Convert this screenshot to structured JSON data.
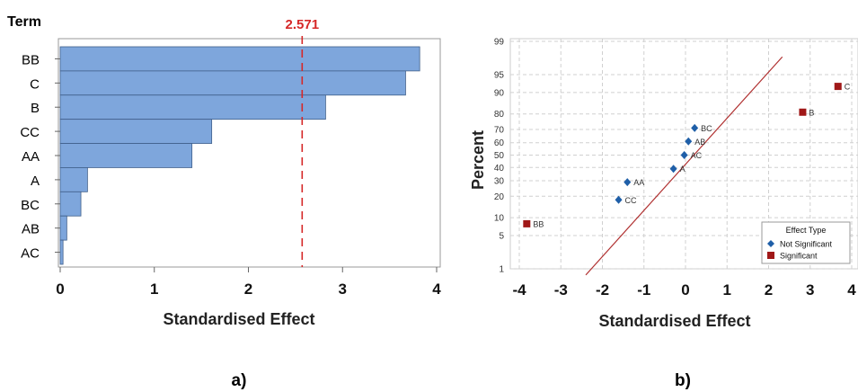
{
  "chart_data": [
    {
      "type": "bar",
      "orientation": "horizontal",
      "panel_label": "a)",
      "ylabel": "Term",
      "xlabel": "Standardised Effect",
      "categories": [
        "BB",
        "C",
        "B",
        "CC",
        "AA",
        "A",
        "BC",
        "AB",
        "AC"
      ],
      "values": [
        3.82,
        3.67,
        2.82,
        1.61,
        1.4,
        0.29,
        0.22,
        0.07,
        0.03
      ],
      "xlim": [
        0,
        4
      ],
      "xticks": [
        0,
        1,
        2,
        3,
        4
      ],
      "reference_line": {
        "value": 2.571,
        "label": "2.571"
      },
      "bar_color": "#7ea6dc",
      "reference_color": "#d62828"
    },
    {
      "type": "scatter",
      "panel_label": "b)",
      "xlabel": "Standardised Effect",
      "ylabel": "Percent",
      "scale_y": "normal-probability",
      "xlim": [
        -4,
        4
      ],
      "xticks": [
        -4,
        -3,
        -2,
        -1,
        0,
        1,
        2,
        3,
        4
      ],
      "yticks": [
        1,
        5,
        10,
        20,
        30,
        40,
        50,
        60,
        70,
        80,
        90,
        95,
        99
      ],
      "grid": true,
      "fit_line": {
        "color": "#b03030",
        "slope_per_effect": 1.06,
        "intercept": 0.2
      },
      "series": [
        {
          "name": "Not Significant",
          "marker": "diamond",
          "color": "#1f5fa8",
          "points": [
            {
              "label": "AA",
              "x": -1.4,
              "y": 29
            },
            {
              "label": "CC",
              "x": -1.61,
              "y": 18
            },
            {
              "label": "A",
              "x": -0.29,
              "y": 39
            },
            {
              "label": "AC",
              "x": -0.03,
              "y": 50
            },
            {
              "label": "AB",
              "x": 0.07,
              "y": 61
            },
            {
              "label": "BC",
              "x": 0.22,
              "y": 71
            }
          ]
        },
        {
          "name": "Significant",
          "marker": "square",
          "color": "#a01818",
          "points": [
            {
              "label": "BB",
              "x": -3.82,
              "y": 8
            },
            {
              "label": "B",
              "x": 2.82,
              "y": 81
            },
            {
              "label": "C",
              "x": 3.67,
              "y": 92
            }
          ]
        }
      ],
      "legend": {
        "title": "Effect Type",
        "placement": "bottom-right",
        "entries": [
          "Not Significant",
          "Significant"
        ]
      }
    }
  ]
}
